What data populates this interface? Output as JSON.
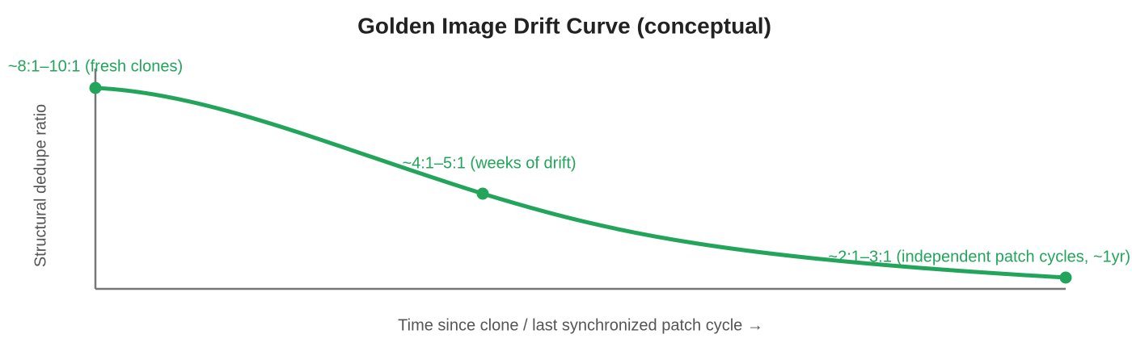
{
  "chart": {
    "title": "Golden Image Drift Curve (conceptual)",
    "x_label": "Time since clone / last synchronized patch cycle →",
    "y_label": "Structural dedupe ratio",
    "color": "#22a55b",
    "annotations": [
      "~8:1–10:1 (fresh clones)",
      "~4:1–5:1 (weeks of drift)",
      "~2:1–3:1 (independent patch cycles, ~1yr)"
    ]
  }
}
